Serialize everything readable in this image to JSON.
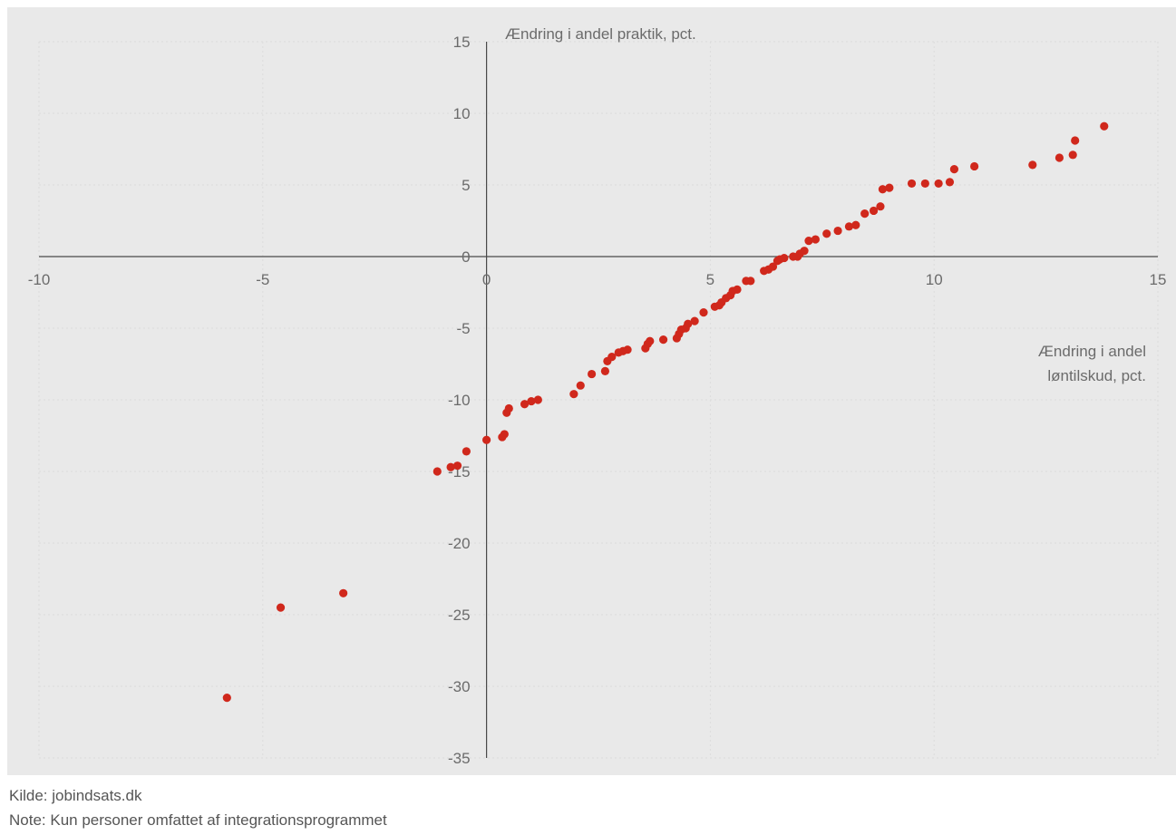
{
  "chart_data": {
    "type": "scatter",
    "title": "",
    "ylabel": "Ændring i andel praktik, pct.",
    "xlabel_lines": [
      "Ændring i andel",
      "løntilskud, pct."
    ],
    "xlim": [
      -10,
      15
    ],
    "ylim": [
      -35,
      15
    ],
    "xticks": [
      "-10",
      "-5",
      "0",
      "5",
      "10",
      "15"
    ],
    "yticks": [
      "15",
      "10",
      "5",
      "0",
      "-5",
      "-10",
      "-15",
      "-20",
      "-25",
      "-30",
      "-35"
    ],
    "grid": true,
    "legend": "none",
    "marker_color": "#d0281c",
    "axis_color": "#4a4a4a",
    "grid_color": "#dcdcdc",
    "points": [
      [
        -5.8,
        -30.8
      ],
      [
        -4.6,
        -24.5
      ],
      [
        -3.2,
        -23.5
      ],
      [
        -1.1,
        -15.0
      ],
      [
        -0.8,
        -14.7
      ],
      [
        -0.65,
        -14.6
      ],
      [
        -0.45,
        -13.6
      ],
      [
        0.0,
        -12.8
      ],
      [
        0.35,
        -12.6
      ],
      [
        0.4,
        -12.4
      ],
      [
        0.45,
        -10.9
      ],
      [
        0.5,
        -10.6
      ],
      [
        0.85,
        -10.3
      ],
      [
        1.0,
        -10.1
      ],
      [
        1.15,
        -10.0
      ],
      [
        1.95,
        -9.6
      ],
      [
        2.1,
        -9.0
      ],
      [
        2.35,
        -8.2
      ],
      [
        2.65,
        -8.0
      ],
      [
        2.7,
        -7.3
      ],
      [
        2.8,
        -7.0
      ],
      [
        2.95,
        -6.7
      ],
      [
        3.05,
        -6.6
      ],
      [
        3.15,
        -6.5
      ],
      [
        3.55,
        -6.4
      ],
      [
        3.6,
        -6.1
      ],
      [
        3.65,
        -5.9
      ],
      [
        3.95,
        -5.8
      ],
      [
        4.25,
        -5.7
      ],
      [
        4.3,
        -5.4
      ],
      [
        4.35,
        -5.1
      ],
      [
        4.45,
        -5.0
      ],
      [
        4.5,
        -4.7
      ],
      [
        4.65,
        -4.5
      ],
      [
        4.85,
        -3.9
      ],
      [
        5.1,
        -3.5
      ],
      [
        5.2,
        -3.4
      ],
      [
        5.25,
        -3.2
      ],
      [
        5.35,
        -2.9
      ],
      [
        5.45,
        -2.7
      ],
      [
        5.5,
        -2.4
      ],
      [
        5.6,
        -2.3
      ],
      [
        5.8,
        -1.7
      ],
      [
        5.9,
        -1.7
      ],
      [
        6.2,
        -1.0
      ],
      [
        6.3,
        -0.9
      ],
      [
        6.4,
        -0.7
      ],
      [
        6.5,
        -0.3
      ],
      [
        6.55,
        -0.2
      ],
      [
        6.65,
        -0.1
      ],
      [
        6.85,
        0.0
      ],
      [
        6.95,
        0.0
      ],
      [
        7.0,
        0.2
      ],
      [
        7.1,
        0.4
      ],
      [
        7.2,
        1.1
      ],
      [
        7.35,
        1.2
      ],
      [
        7.6,
        1.6
      ],
      [
        7.85,
        1.8
      ],
      [
        8.1,
        2.1
      ],
      [
        8.25,
        2.2
      ],
      [
        8.45,
        3.0
      ],
      [
        8.65,
        3.2
      ],
      [
        8.8,
        3.5
      ],
      [
        8.85,
        4.7
      ],
      [
        9.0,
        4.8
      ],
      [
        9.5,
        5.1
      ],
      [
        9.8,
        5.1
      ],
      [
        10.1,
        5.1
      ],
      [
        10.35,
        5.2
      ],
      [
        10.45,
        6.1
      ],
      [
        10.9,
        6.3
      ],
      [
        12.2,
        6.4
      ],
      [
        12.8,
        6.9
      ],
      [
        13.1,
        7.1
      ],
      [
        13.15,
        8.1
      ],
      [
        13.8,
        9.1
      ]
    ]
  },
  "footer": {
    "source": "Kilde: jobindsats.dk",
    "note": "Note: Kun personer omfattet af integrationsprogrammet"
  }
}
